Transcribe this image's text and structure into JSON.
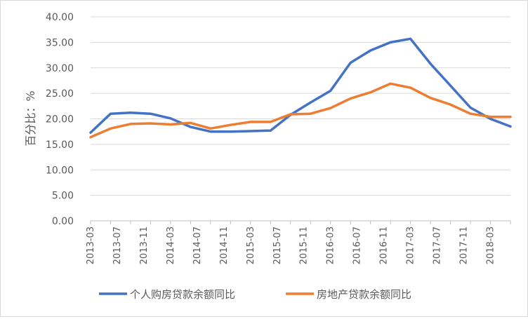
{
  "chart_data": {
    "type": "line",
    "title": "",
    "xlabel": "",
    "ylabel": "百分比：%",
    "ylim": [
      0,
      40
    ],
    "yticks": [
      "0.00",
      "5.00",
      "10.00",
      "15.00",
      "20.00",
      "25.00",
      "30.00",
      "35.00",
      "40.00"
    ],
    "x_tick_labels": [
      "2013-03",
      "2013-07",
      "2013-11",
      "2014-03",
      "2014-07",
      "2014-11",
      "2015-03",
      "2015-07",
      "2015-11",
      "2016-03",
      "2016-07",
      "2016-11",
      "2017-03",
      "2017-07",
      "2017-11",
      "2018-03"
    ],
    "x": [
      "2013-03",
      "2013-06",
      "2013-09",
      "2013-12",
      "2014-03",
      "2014-06",
      "2014-09",
      "2014-12",
      "2015-03",
      "2015-06",
      "2015-09",
      "2015-12",
      "2016-03",
      "2016-06",
      "2016-09",
      "2016-12",
      "2017-03",
      "2017-06",
      "2017-09",
      "2017-12",
      "2018-03",
      "2018-06"
    ],
    "grid": "horizontal",
    "legend": "bottom",
    "series": [
      {
        "name": "个人购房贷款余额同比",
        "color": "#4472c4",
        "values": [
          17.3,
          21.0,
          21.2,
          21.0,
          20.1,
          18.4,
          17.5,
          17.5,
          17.6,
          17.7,
          20.8,
          23.2,
          25.5,
          31.0,
          33.4,
          35.0,
          35.7,
          30.8,
          26.5,
          22.2,
          20.0,
          18.5
        ]
      },
      {
        "name": "房地产贷款余额同比",
        "color": "#ed7d31",
        "values": [
          16.4,
          18.1,
          19.0,
          19.1,
          18.9,
          19.2,
          18.1,
          18.8,
          19.4,
          19.4,
          20.9,
          21.0,
          22.1,
          24.0,
          25.2,
          26.9,
          26.1,
          24.1,
          22.8,
          21.0,
          20.4,
          20.4
        ]
      }
    ]
  }
}
